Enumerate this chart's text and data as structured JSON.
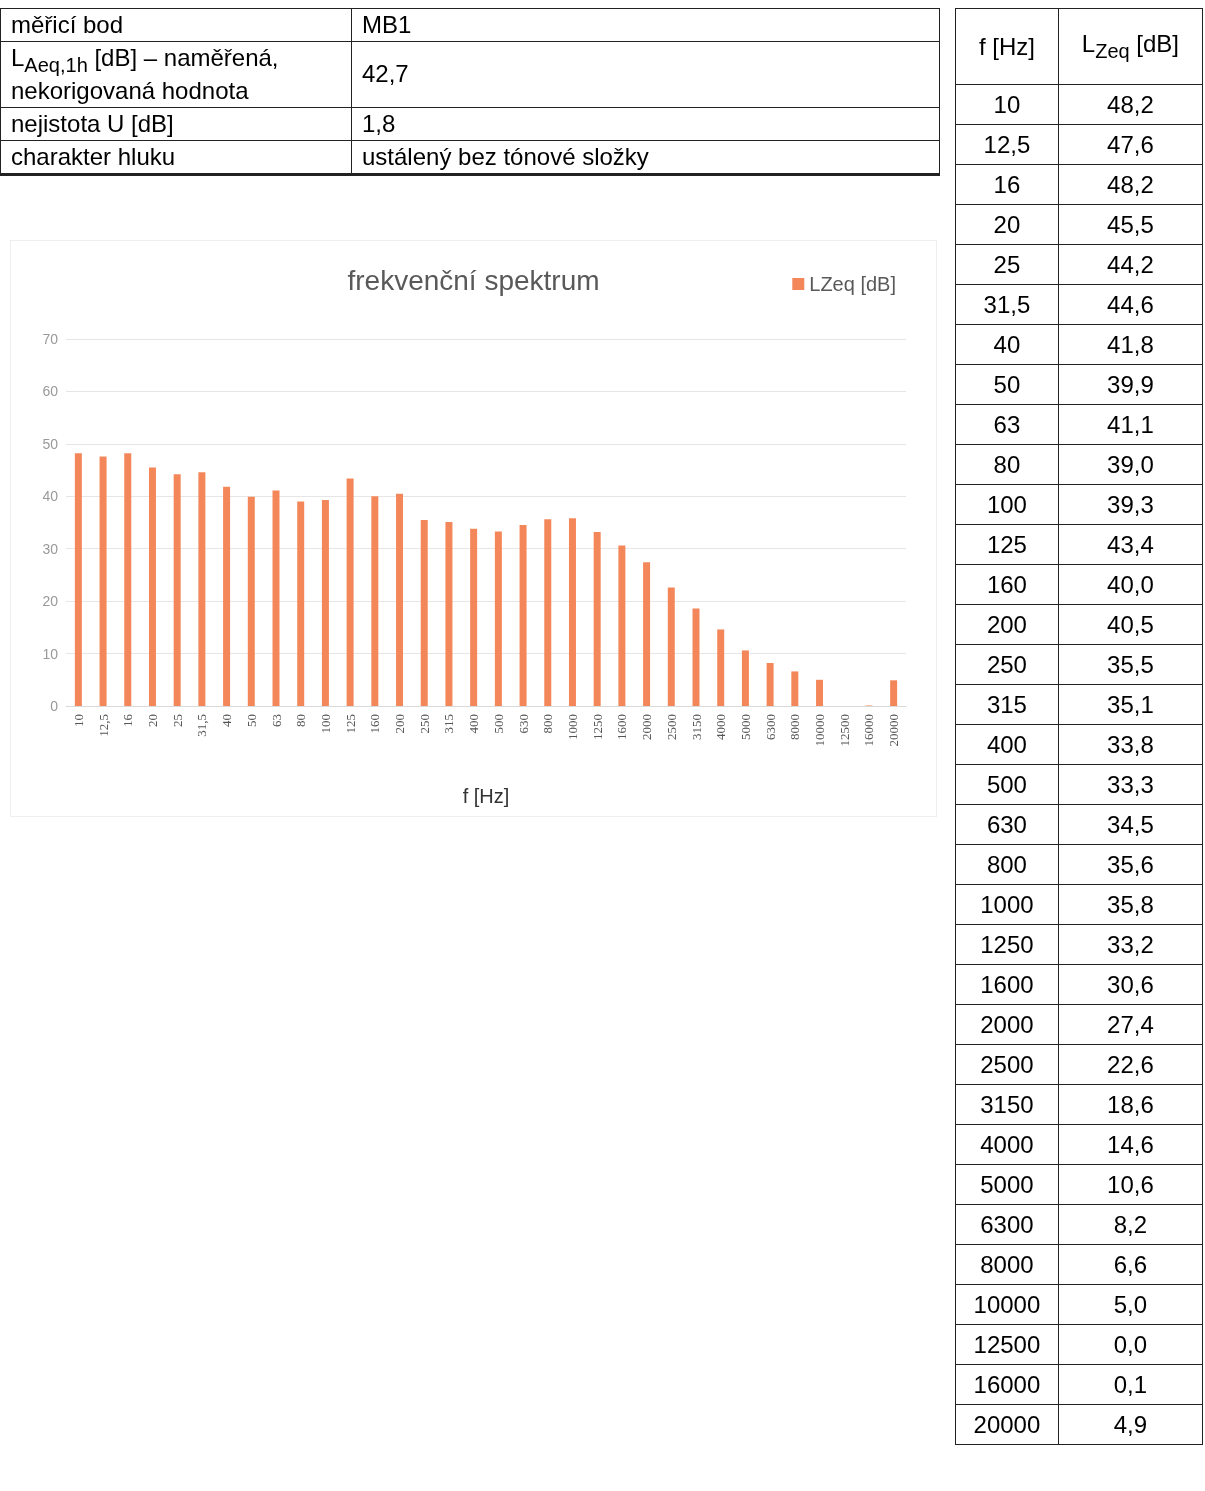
{
  "chart_data": [
    {
      "type": "other",
      "annotations": [
        "měřicí bod",
        "MB1",
        "L$_{Aeq,1h}$ [dB] – naměřená, nekorigovaná hodnota",
        "42,7",
        "nejistota U [dB]",
        "1,8",
        "charakter hluku",
        "ustálený bez tónové složky"
      ]
    },
    {
      "type": "bar",
      "title": "frekvenční spektrum",
      "xlabel": "f [Hz]",
      "categories": [
        "10",
        "12,5",
        "16",
        "20",
        "25",
        "31,5",
        "40",
        "50",
        "63",
        "80",
        "100",
        "125",
        "160",
        "200",
        "250",
        "315",
        "400",
        "500",
        "630",
        "800",
        "1000",
        "1250",
        "1600",
        "2000",
        "2500",
        "3150",
        "4000",
        "5000",
        "6300",
        "8000",
        "10000",
        "12500",
        "16000",
        "20000"
      ],
      "series": [
        {
          "name": "LZeq [dB]",
          "color": "#f4875a",
          "values": [
            48.2,
            47.6,
            48.2,
            45.5,
            44.2,
            44.6,
            41.8,
            39.9,
            41.1,
            39.0,
            39.3,
            43.4,
            40.0,
            40.5,
            35.5,
            35.1,
            33.8,
            33.3,
            34.5,
            35.6,
            35.8,
            33.2,
            30.6,
            27.4,
            22.6,
            18.6,
            14.6,
            10.6,
            8.2,
            6.6,
            5.0,
            0.0,
            0.1,
            4.9
          ]
        }
      ],
      "ylim": [
        0,
        70
      ],
      "yticks": [
        0,
        10,
        20,
        30,
        40,
        50,
        60,
        70
      ],
      "grid": "y",
      "legend": "top right"
    },
    {
      "type": "other",
      "annotations": [
        "f [Hz]",
        "L$_{Zeq}$ [dB]",
        "10",
        "48,2",
        "12,5",
        "47,6",
        "16",
        "48,2",
        "20",
        "45,5",
        "25",
        "44,2",
        "31,5",
        "44,6",
        "40",
        "41,8",
        "50",
        "39,9",
        "63",
        "41,1",
        "80",
        "39,0",
        "100",
        "39,3",
        "125",
        "43,4",
        "160",
        "40,0",
        "200",
        "40,5",
        "250",
        "35,5",
        "315",
        "35,1",
        "400",
        "33,8",
        "500",
        "33,3",
        "630",
        "34,5",
        "800",
        "35,6",
        "1000",
        "35,8",
        "1250",
        "33,2",
        "1600",
        "30,6",
        "2000",
        "27,4",
        "2500",
        "22,6",
        "3150",
        "18,6",
        "4000",
        "14,6",
        "5000",
        "10,6",
        "6300",
        "8,2",
        "8000",
        "6,6",
        "10000",
        "5,0",
        "12500",
        "0,0",
        "16000",
        "0,1",
        "20000",
        "4,9"
      ]
    }
  ]
}
